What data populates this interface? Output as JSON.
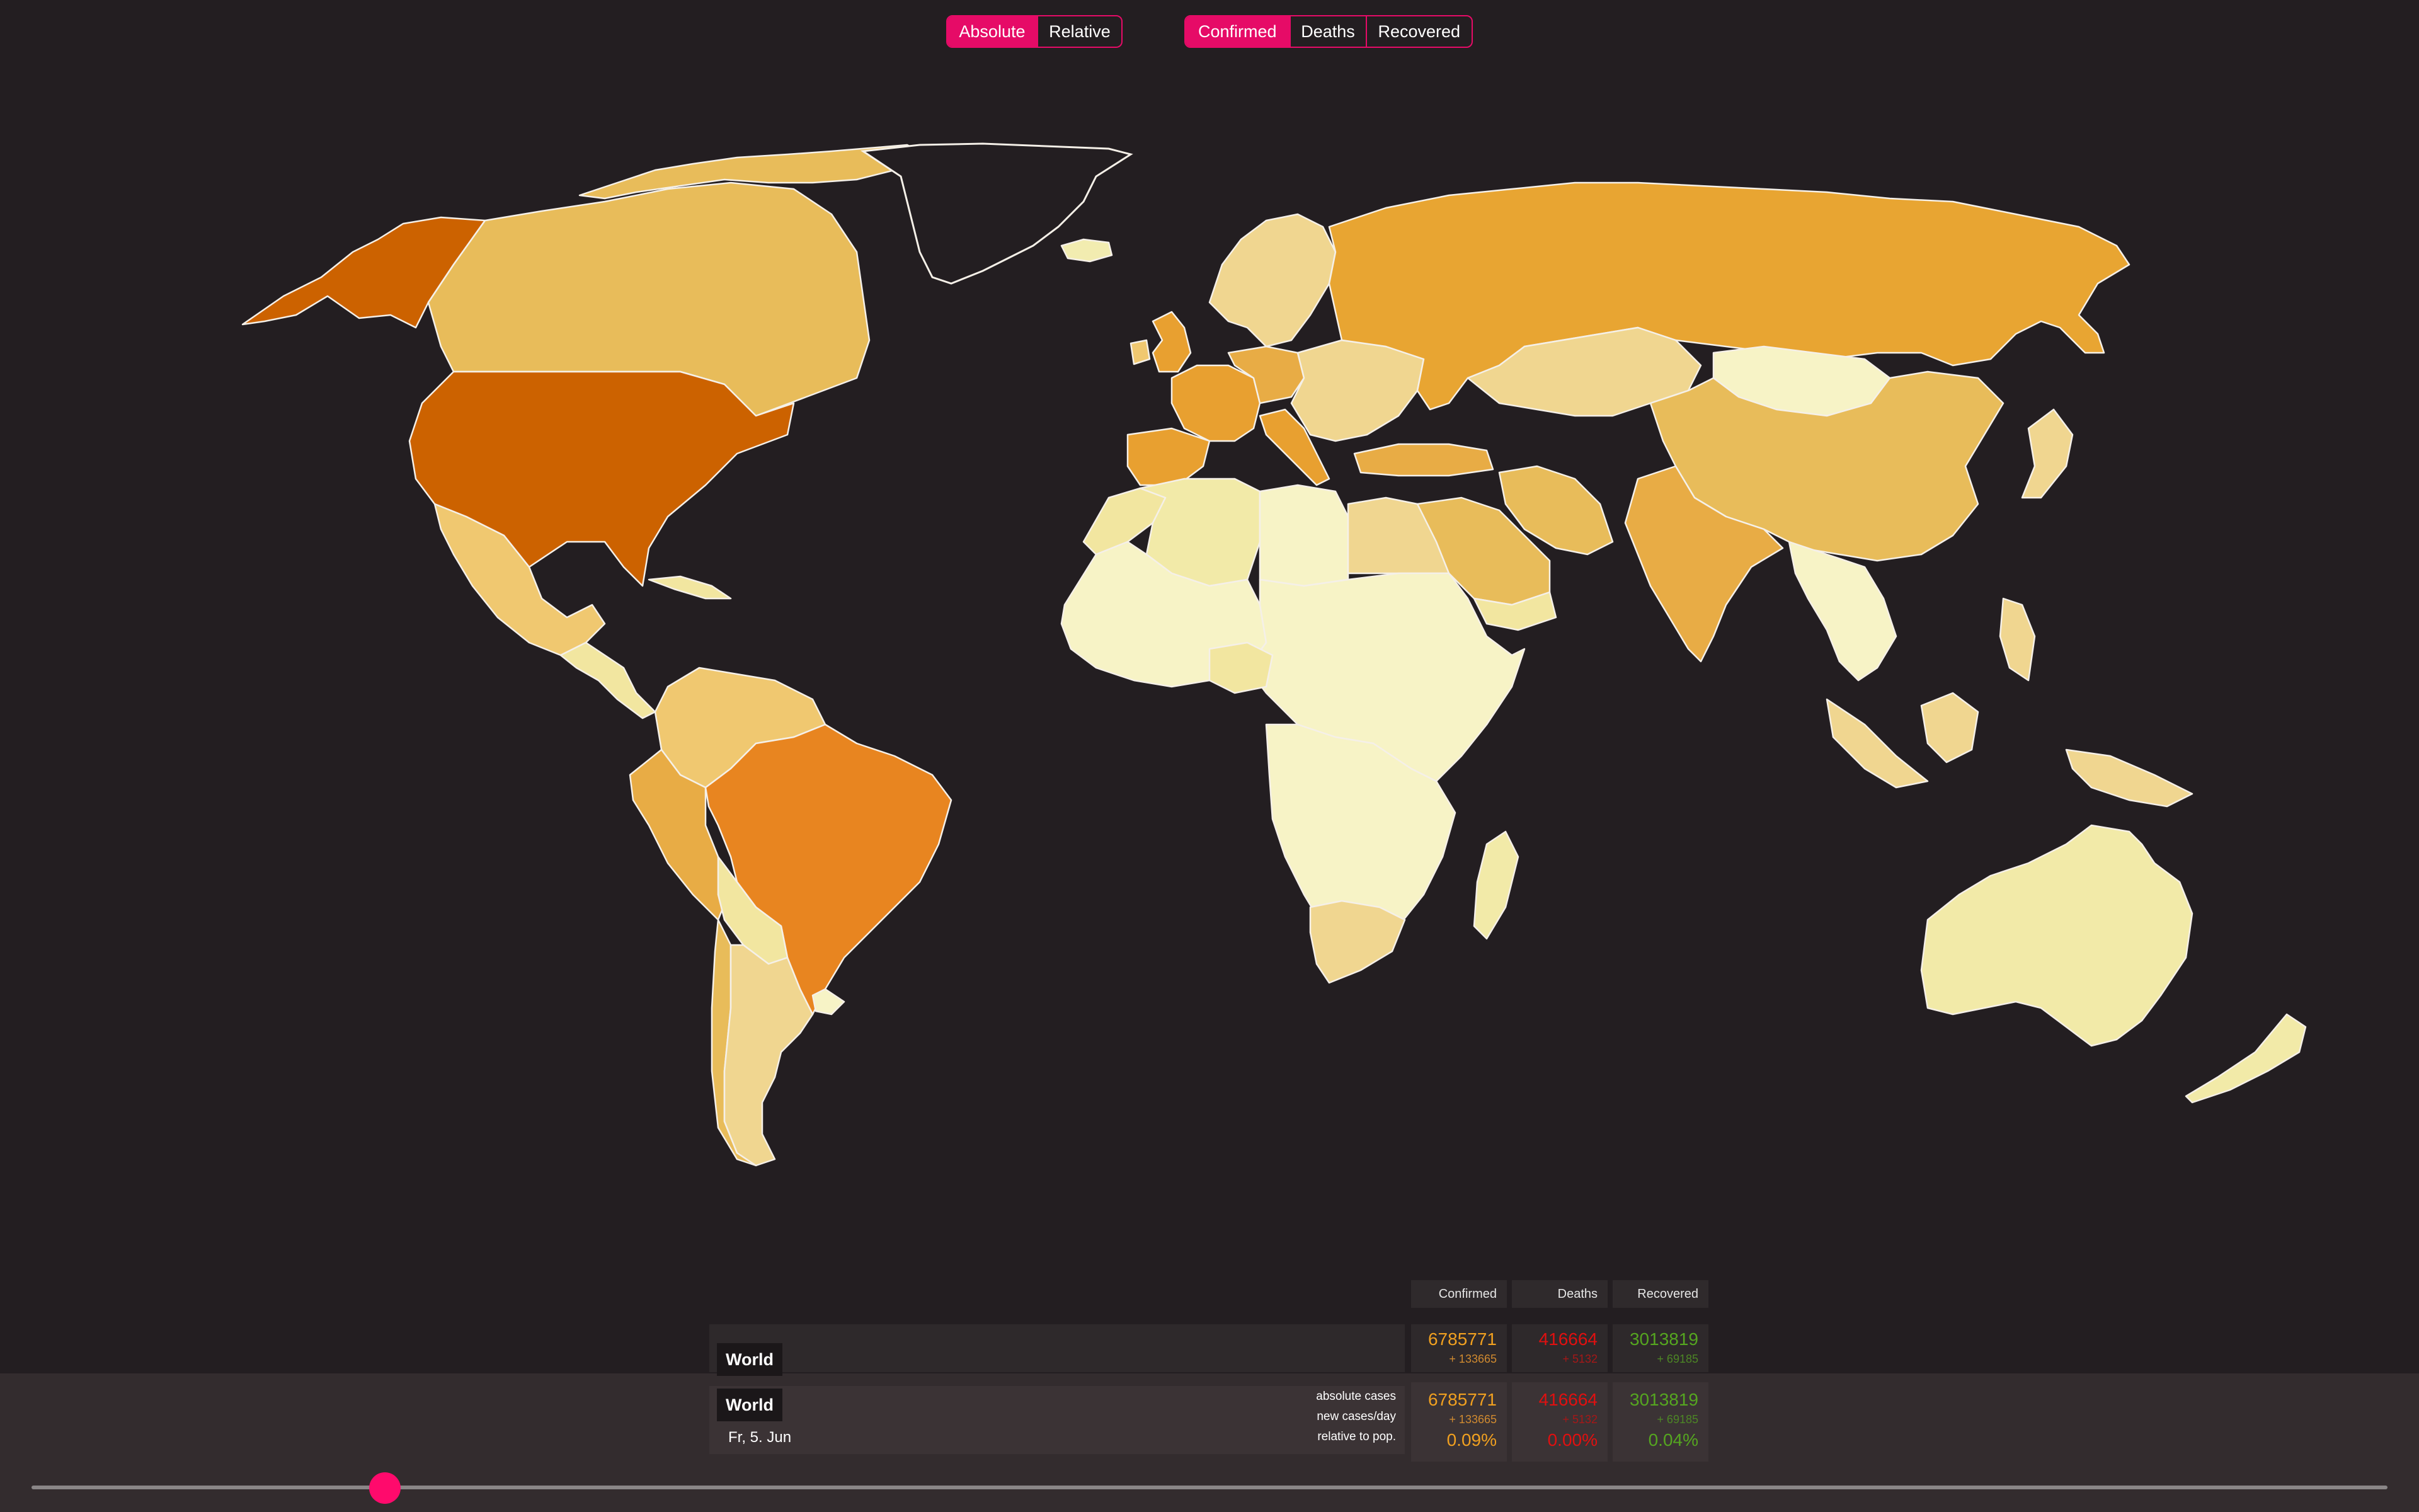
{
  "toggles": {
    "mode": {
      "options": [
        "Absolute",
        "Relative"
      ],
      "selected": "Absolute"
    },
    "metric": {
      "options": [
        "Confirmed",
        "Deaths",
        "Recovered"
      ],
      "selected": "Confirmed"
    }
  },
  "colors": {
    "accent": "#e60b67",
    "confirmed": "#f0a020",
    "deaths": "#e01010",
    "recovered": "#55a520"
  },
  "stats": {
    "headers": [
      "Confirmed",
      "Deaths",
      "Recovered"
    ],
    "hover_row": {
      "region": "World",
      "confirmed": "6785771",
      "confirmed_delta": "+ 133665",
      "deaths": "416664",
      "deaths_delta": "+ 5132",
      "recovered": "3013819",
      "recovered_delta": "+ 69185"
    },
    "selected_row": {
      "region": "World",
      "date": "Fr, 5. Jun",
      "labels": [
        "absolute cases",
        "new cases/day",
        "relative to pop."
      ],
      "confirmed": "6785771",
      "confirmed_delta": "+ 133665",
      "confirmed_rel": "0.09%",
      "deaths": "416664",
      "deaths_delta": "+ 5132",
      "deaths_rel": "0.00%",
      "recovered": "3013819",
      "recovered_delta": "+ 69185",
      "recovered_rel": "0.04%"
    }
  },
  "timeline": {
    "position": 0.15
  }
}
